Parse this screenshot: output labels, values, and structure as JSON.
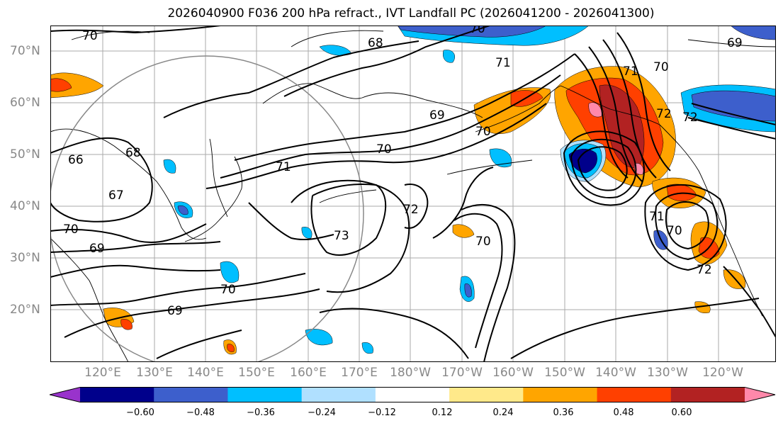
{
  "title": "2026040900 F036 200 hPa refract., IVT Landfall PC (2026041200 - 2026041300)",
  "latitude_labels": [
    "70°N",
    "60°N",
    "50°N",
    "40°N",
    "30°N",
    "20°N"
  ],
  "longitude_labels": [
    "120°E",
    "130°E",
    "140°E",
    "150°E",
    "160°E",
    "170°E",
    "180°W",
    "170°W",
    "160°W",
    "150°W",
    "140°W",
    "130°W",
    "120°W"
  ],
  "contour_labels": [
    "70",
    "68",
    "69",
    "71",
    "70",
    "72",
    "70",
    "69",
    "68",
    "67",
    "66",
    "70",
    "69",
    "71",
    "72",
    "73",
    "70",
    "70",
    "69",
    "70",
    "71",
    "70",
    "72",
    "71",
    "70",
    "72"
  ],
  "colorbar": {
    "tick_labels": [
      "−0.60",
      "−0.48",
      "−0.36",
      "−0.24",
      "−0.12",
      "0.12",
      "0.24",
      "0.36",
      "0.48",
      "0.60"
    ],
    "colors": [
      "#9933cc",
      "#00008b",
      "#3d5fcc",
      "#00bfff",
      "#b0e0ff",
      "#ffffff",
      "#ffe98a",
      "#ffa500",
      "#ff4000",
      "#b22222",
      "#ff88aa"
    ]
  },
  "map_colors": {
    "contour": "#000000",
    "graticule": "#aaaaaa",
    "coastline": "#000000",
    "circle": "#888888"
  }
}
